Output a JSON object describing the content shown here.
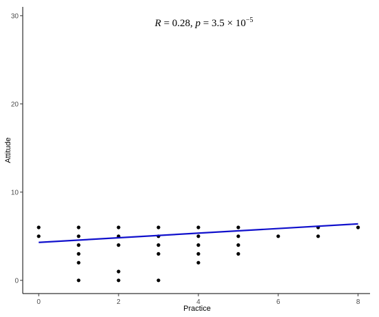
{
  "chart_data": {
    "type": "scatter",
    "xlabel": "Practice",
    "ylabel": "Attitude",
    "xlim": [
      -0.4,
      8.3
    ],
    "ylim": [
      -1.5,
      31.0
    ],
    "x_ticks": [
      0,
      2,
      4,
      6,
      8
    ],
    "y_ticks": [
      0,
      10,
      20,
      30
    ],
    "grid": false,
    "annotation": {
      "r_symbol": "R",
      "r_value": " = 0.28, ",
      "p_symbol": "p",
      "p_value": " = 3.5 × 10",
      "p_exponent": "−5"
    },
    "points": [
      {
        "x": 0,
        "y": 6
      },
      {
        "x": 0,
        "y": 5
      },
      {
        "x": 1,
        "y": 6
      },
      {
        "x": 1,
        "y": 5
      },
      {
        "x": 1,
        "y": 4
      },
      {
        "x": 1,
        "y": 3
      },
      {
        "x": 1,
        "y": 2
      },
      {
        "x": 1,
        "y": 0
      },
      {
        "x": 2,
        "y": 6
      },
      {
        "x": 2,
        "y": 5
      },
      {
        "x": 2,
        "y": 4
      },
      {
        "x": 2,
        "y": 1
      },
      {
        "x": 2,
        "y": 0
      },
      {
        "x": 3,
        "y": 6
      },
      {
        "x": 3,
        "y": 5
      },
      {
        "x": 3,
        "y": 4
      },
      {
        "x": 3,
        "y": 3
      },
      {
        "x": 3,
        "y": 0
      },
      {
        "x": 4,
        "y": 6
      },
      {
        "x": 4,
        "y": 5
      },
      {
        "x": 4,
        "y": 4
      },
      {
        "x": 4,
        "y": 3
      },
      {
        "x": 4,
        "y": 2
      },
      {
        "x": 5,
        "y": 6
      },
      {
        "x": 5,
        "y": 5
      },
      {
        "x": 5,
        "y": 4
      },
      {
        "x": 5,
        "y": 3
      },
      {
        "x": 6,
        "y": 5
      },
      {
        "x": 7,
        "y": 6
      },
      {
        "x": 7,
        "y": 5
      },
      {
        "x": 8,
        "y": 6
      }
    ],
    "regression_line": {
      "x": [
        0,
        8
      ],
      "y": [
        4.3,
        6.4
      ],
      "color": "#1010cc"
    },
    "point_color": "#000000"
  }
}
